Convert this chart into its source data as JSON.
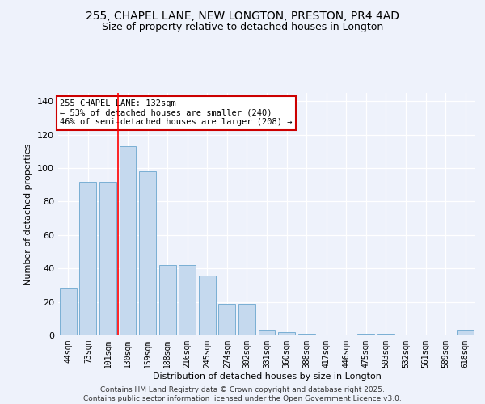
{
  "title_line1": "255, CHAPEL LANE, NEW LONGTON, PRESTON, PR4 4AD",
  "title_line2": "Size of property relative to detached houses in Longton",
  "xlabel": "Distribution of detached houses by size in Longton",
  "ylabel": "Number of detached properties",
  "categories": [
    "44sqm",
    "73sqm",
    "101sqm",
    "130sqm",
    "159sqm",
    "188sqm",
    "216sqm",
    "245sqm",
    "274sqm",
    "302sqm",
    "331sqm",
    "360sqm",
    "388sqm",
    "417sqm",
    "446sqm",
    "475sqm",
    "503sqm",
    "532sqm",
    "561sqm",
    "589sqm",
    "618sqm"
  ],
  "values": [
    28,
    92,
    92,
    113,
    98,
    42,
    42,
    36,
    19,
    19,
    3,
    2,
    1,
    0,
    0,
    1,
    1,
    0,
    0,
    0,
    3
  ],
  "bar_color": "#c5d9ee",
  "bar_edge_color": "#7aafd4",
  "red_line_x": 2.5,
  "annotation_text": "255 CHAPEL LANE: 132sqm\n← 53% of detached houses are smaller (240)\n46% of semi-detached houses are larger (208) →",
  "annotation_box_color": "#ffffff",
  "annotation_box_edge": "#cc0000",
  "ylim": [
    0,
    145
  ],
  "yticks": [
    0,
    20,
    40,
    60,
    80,
    100,
    120,
    140
  ],
  "background_color": "#eef2fb",
  "footer_line1": "Contains HM Land Registry data © Crown copyright and database right 2025.",
  "footer_line2": "Contains public sector information licensed under the Open Government Licence v3.0."
}
